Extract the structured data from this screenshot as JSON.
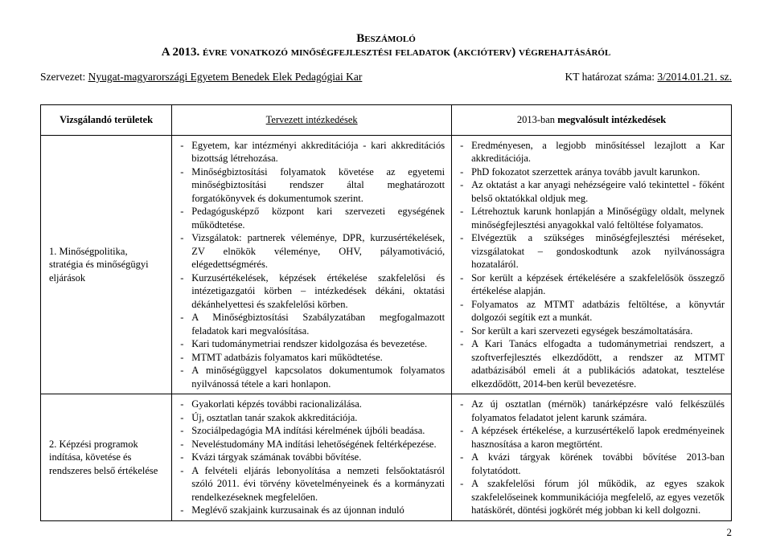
{
  "header": {
    "title_line1": "Beszámoló",
    "title_line2": "A 2013. évre vonatkozó minőségfejlesztési feladatok (akcióterv) végrehajtásáról",
    "org_label": "Szervezet: ",
    "org_value": "Nyugat-magyarországi Egyetem Benedek Elek Pedagógiai Kar",
    "kt_label": "KT határozat száma: ",
    "kt_value": "3/2014.01.21. sz."
  },
  "table": {
    "head": {
      "c1": "Vizsgálandó területek",
      "c2": "Tervezett intézkedések",
      "c3_prefix": "2013-ban ",
      "c3_bold": "megvalósult intézkedések"
    },
    "row1": {
      "label": "1. Minőségpolitika, stratégia és minőségügyi eljárások",
      "planned": [
        "Egyetem, kar intézményi akkreditációja - kari akkreditációs bizottság létrehozása.",
        "Minőségbiztosítási folyamatok követése az egyetemi minőségbiztosítási rendszer által meghatározott forgatókönyvek és dokumentumok szerint.",
        "Pedagógusképző központ kari szervezeti egységének működtetése.",
        "Vizsgálatok: partnerek véleménye, DPR, kurzusértékelések, ZV elnökök véleménye, OHV, pályamotiváció, elégedettségmérés.",
        "Kurzusértékelések, képzések értékelése szakfelelősi és intézetigazgatói körben – intézkedések dékáni, oktatási dékánhelyettesi és szakfelelősi körben.",
        "A Minőségbiztosítási Szabályzatában megfogalmazott feladatok kari megvalósítása.",
        "Kari tudománymetriai rendszer kidolgozása és bevezetése.",
        "MTMT adatbázis folyamatos kari működtetése.",
        "A minőségüggyel kapcsolatos dokumentumok folyamatos nyilvánossá tétele a kari honlapon."
      ],
      "done": [
        "Eredményesen, a legjobb minősítéssel lezajlott a Kar akkreditációja.",
        "PhD fokozatot szerzettek aránya tovább javult karunkon.",
        "Az oktatást a kar anyagi nehézségeire való tekintettel - főként belső oktatókkal oldjuk meg.",
        "Létrehoztuk karunk honlapján a Minőségügy oldalt, melynek minőségfejlesztési anyagokkal való feltöltése folyamatos.",
        "Elvégeztük a szükséges minőségfejlesztési méréseket, vizsgálatokat – gondoskodtunk azok nyilvánosságra hozataláról.",
        "Sor került a képzések értékelésére a szakfelelősök összegző értékelése alapján.",
        "Folyamatos az MTMT adatbázis feltöltése, a könyvtár dolgozói segítik ezt a munkát.",
        "Sor került a kari szervezeti egységek beszámoltatására.",
        "A Kari Tanács elfogadta a tudománymetriai rendszert, a szoftverfejlesztés elkezdődött, a rendszer az MTMT adatbázisából emeli át a publikációs adatokat, tesztelése elkezdődött, 2014-ben kerül bevezetésre."
      ]
    },
    "row2": {
      "label": "2. Képzési programok indítása, követése és rendszeres belső értékelése",
      "planned": [
        "Gyakorlati képzés további racionalizálása.",
        "Új, osztatlan tanár szakok akkreditációja.",
        "Szociálpedagógia MA indítási kérelmének újbóli beadása.",
        "Neveléstudomány MA indítási lehetőségének feltérképezése.",
        "Kvázi tárgyak számának további bővítése.",
        "A felvételi eljárás lebonyolítása a nemzeti felsőoktatásról szóló 2011. évi törvény követelményeinek és a kormányzati rendelkezéseknek megfelelően.",
        "Meglévő szakjaink kurzusainak és az újonnan induló"
      ],
      "done": [
        "Az új osztatlan (mérnök) tanárképzésre való felkészülés folyamatos feladatot jelent karunk számára.",
        "A képzések értékelése, a kurzusértékelő lapok eredményeinek hasznosítása a karon megtörtént.",
        "A kvázi tárgyak körének további bővítése 2013-ban folytatódott.",
        "A szakfelelősi fórum jól működik, az egyes szakok szakfelelőseinek kommunikációja megfelelő, az egyes vezetők hatáskörét, döntési jogkörét még jobban ki kell dolgozni."
      ]
    }
  },
  "page_number": "2"
}
